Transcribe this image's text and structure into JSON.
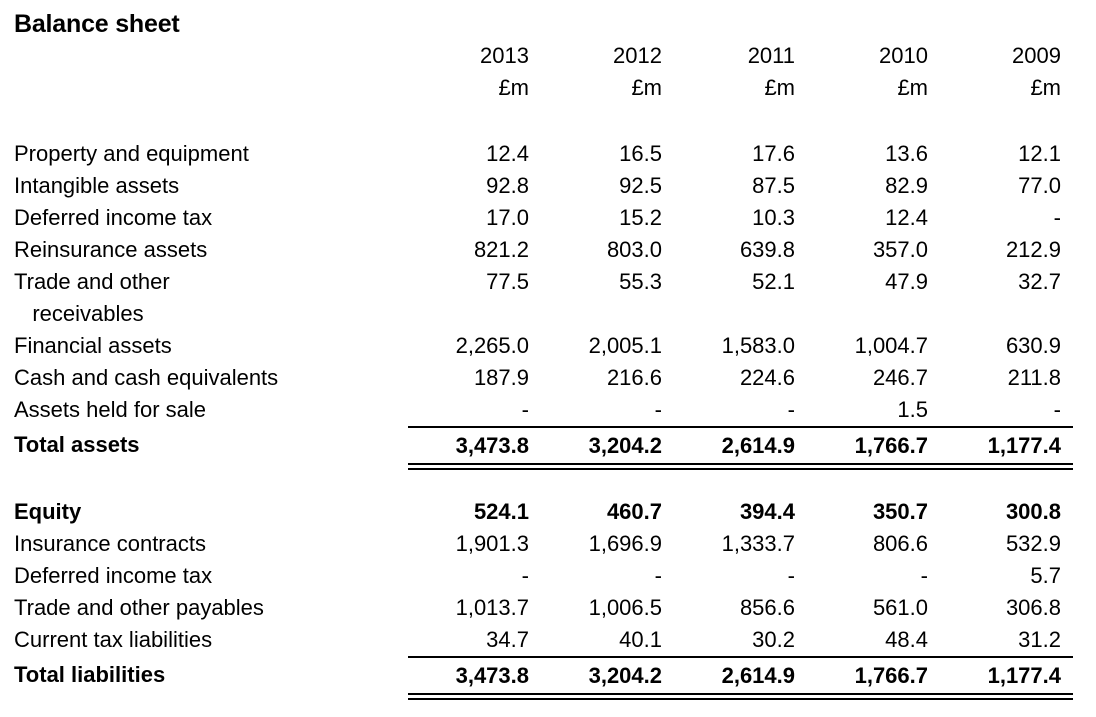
{
  "title": "Balance sheet",
  "table": {
    "years": [
      "2013",
      "2012",
      "2011",
      "2010",
      "2009"
    ],
    "unit_label": "£m",
    "sections": [
      {
        "name": "assets",
        "rows": [
          {
            "label": "Property and equipment",
            "bold": false,
            "values": [
              "12.4",
              "16.5",
              "17.6",
              "13.6",
              "12.1"
            ]
          },
          {
            "label": "Intangible assets",
            "bold": false,
            "values": [
              "92.8",
              "92.5",
              "87.5",
              "82.9",
              "77.0"
            ]
          },
          {
            "label": "Deferred income tax",
            "bold": false,
            "values": [
              "17.0",
              "15.2",
              "10.3",
              "12.4",
              "-"
            ]
          },
          {
            "label": "Reinsurance assets",
            "bold": false,
            "values": [
              "821.2",
              "803.0",
              "639.8",
              "357.0",
              "212.9"
            ]
          },
          {
            "label": "Trade and other\n   receivables",
            "bold": false,
            "values": [
              "77.5",
              "55.3",
              "52.1",
              "47.9",
              "32.7"
            ]
          },
          {
            "label": "Financial assets",
            "bold": false,
            "values": [
              "2,265.0",
              "2,005.1",
              "1,583.0",
              "1,004.7",
              "630.9"
            ]
          },
          {
            "label": "Cash and cash equivalents",
            "bold": false,
            "values": [
              "187.9",
              "216.6",
              "224.6",
              "246.7",
              "211.8"
            ]
          },
          {
            "label": "Assets held for sale",
            "bold": false,
            "values": [
              "-",
              "-",
              "-",
              "1.5",
              "-"
            ]
          }
        ],
        "total": {
          "label": "Total assets",
          "bold": true,
          "values": [
            "3,473.8",
            "3,204.2",
            "2,614.9",
            "1,766.7",
            "1,177.4"
          ]
        }
      },
      {
        "name": "equity-and-liabilities",
        "rows": [
          {
            "label": "Equity",
            "bold": true,
            "values": [
              "524.1",
              "460.7",
              "394.4",
              "350.7",
              "300.8"
            ]
          },
          {
            "label": "Insurance contracts",
            "bold": false,
            "values": [
              "1,901.3",
              "1,696.9",
              "1,333.7",
              "806.6",
              "532.9"
            ]
          },
          {
            "label": "Deferred income tax",
            "bold": false,
            "values": [
              "-",
              "-",
              "-",
              "-",
              "5.7"
            ]
          },
          {
            "label": "Trade and other payables",
            "bold": false,
            "values": [
              "1,013.7",
              "1,006.5",
              "856.6",
              "561.0",
              "306.8"
            ]
          },
          {
            "label": "Current tax liabilities",
            "bold": false,
            "values": [
              "34.7",
              "40.1",
              "30.2",
              "48.4",
              "31.2"
            ]
          }
        ],
        "total": {
          "label": "Total liabilities",
          "bold": true,
          "values": [
            "3,473.8",
            "3,204.2",
            "2,614.9",
            "1,766.7",
            "1,177.4"
          ]
        }
      }
    ]
  }
}
